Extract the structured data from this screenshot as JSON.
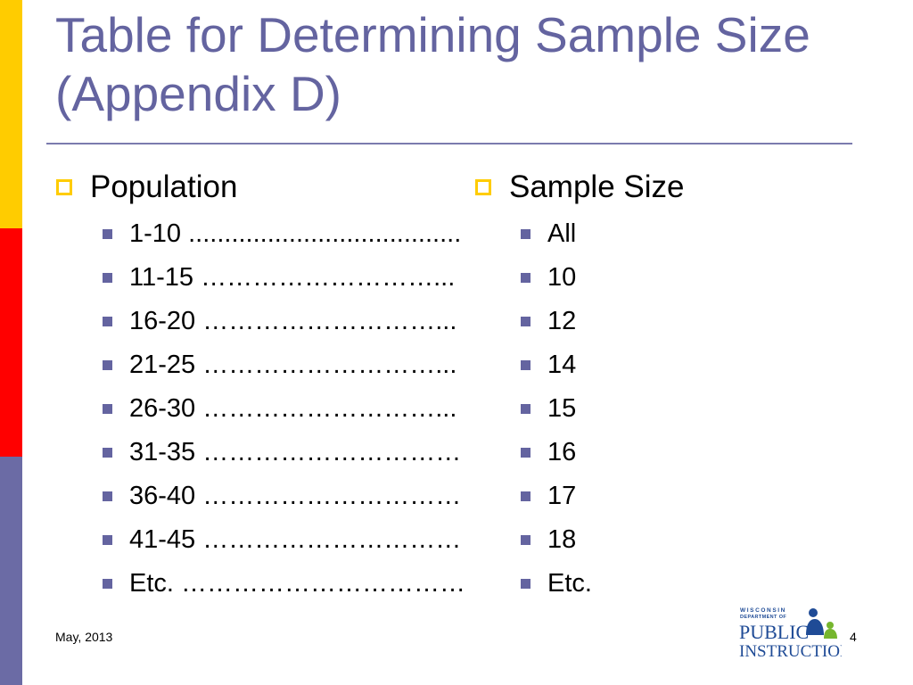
{
  "colors": {
    "stripe_yellow": "#FFCC00",
    "stripe_red": "#FF0000",
    "stripe_purple": "#6B6BA5",
    "title": "#6464A0",
    "rule": "#7B7BAE",
    "bullet_box": "#FFCC00",
    "bullet_square": "#6464A0",
    "logo_blue": "#1F4B96",
    "logo_green": "#76B62E"
  },
  "slide": {
    "title": "Table for Determining Sample Size (Appendix D)",
    "population_header": "Population",
    "sample_header": "Sample Size",
    "rows": [
      {
        "population": "1-10 ......................................",
        "sample": "All"
      },
      {
        "population": "11-15 ………………………...",
        "sample": "10"
      },
      {
        "population": "16-20 ………………………...",
        "sample": "12"
      },
      {
        "population": "21-25 ………………………...",
        "sample": "14"
      },
      {
        "population": "26-30 ………………………...",
        "sample": "15"
      },
      {
        "population": "31-35 …………………………",
        "sample": "16"
      },
      {
        "population": "36-40 …………………………",
        "sample": "17"
      },
      {
        "population": "41-45 …………………………",
        "sample": "18"
      },
      {
        "population": "Etc. ……………………………",
        "sample": "Etc."
      }
    ],
    "footer_date": "May, 2013",
    "page_number": "4"
  },
  "logo": {
    "line1": "WISCONSIN",
    "line2": "DEPARTMENT OF",
    "line3": "PUBLIC",
    "line4": "INSTRUCTION"
  }
}
